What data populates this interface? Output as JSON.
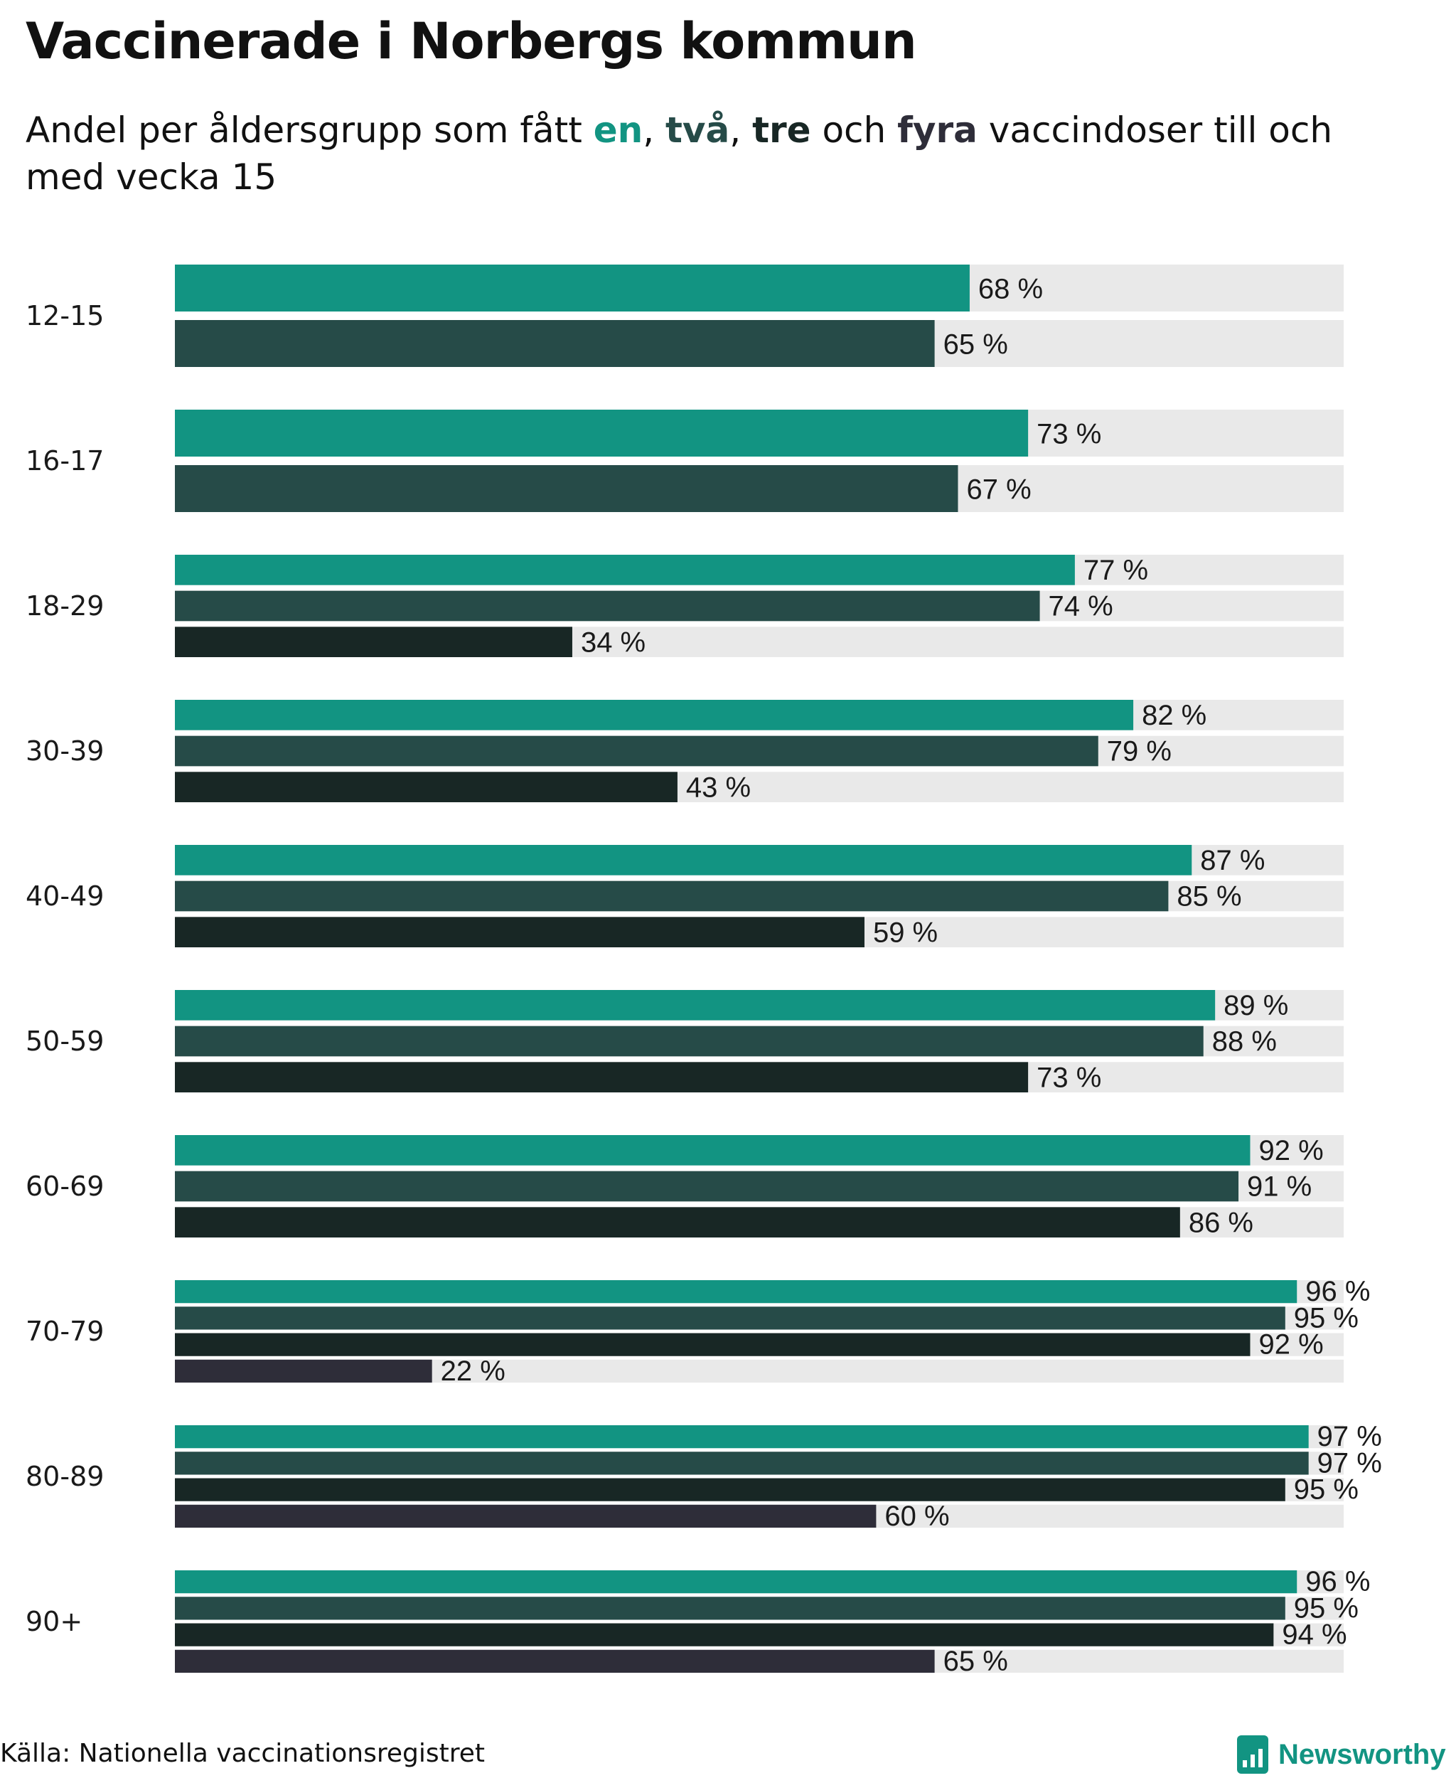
{
  "header": {
    "title": "Vaccinerade i Norbergs kommun",
    "subtitle_prefix": "Andel per åldersgrupp som fått ",
    "dose1": "en",
    "sep1": ", ",
    "dose2": "två",
    "sep2": ", ",
    "dose3": "tre",
    "and_word": " och ",
    "dose4": "fyra",
    "subtitle_suffix": " vaccindoser till och med vecka 15"
  },
  "colors": {
    "dose1": "#129482",
    "dose2": "#264b48",
    "dose3": "#182725",
    "dose4": "#2e2d39",
    "track": "#e9e9e9"
  },
  "chart_data": {
    "type": "bar",
    "orientation": "horizontal",
    "value_suffix": " %",
    "xlim": [
      0,
      100
    ],
    "grid": false,
    "categories": [
      "12-15",
      "16-17",
      "18-29",
      "30-39",
      "40-49",
      "50-59",
      "60-69",
      "70-79",
      "80-89",
      "90+"
    ],
    "series": [
      {
        "name": "en",
        "values": [
          68,
          73,
          77,
          82,
          87,
          89,
          92,
          96,
          97,
          96
        ]
      },
      {
        "name": "två",
        "values": [
          65,
          67,
          74,
          79,
          85,
          88,
          91,
          95,
          97,
          95
        ]
      },
      {
        "name": "tre",
        "values": [
          null,
          null,
          34,
          43,
          59,
          73,
          86,
          92,
          95,
          94
        ]
      },
      {
        "name": "fyra",
        "values": [
          null,
          null,
          null,
          null,
          null,
          null,
          null,
          22,
          60,
          65
        ]
      }
    ]
  },
  "footer": {
    "source": "Källa: Nationella vaccinationsregistret",
    "brand": "Newsworthy"
  }
}
